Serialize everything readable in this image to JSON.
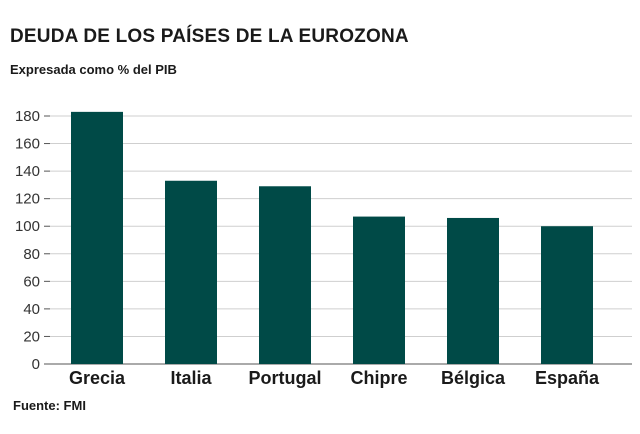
{
  "title": "DEUDA DE LOS PAÍSES DE LA EUROZONA",
  "subtitle": "Expresada como % del PIB",
  "source": "Fuente: FMI",
  "colors": {
    "bar": "#004a47",
    "grid": "#cfcfcf"
  },
  "chart_data": {
    "type": "bar",
    "title": "DEUDA DE LOS PAÍSES DE LA EUROZONA",
    "subtitle": "Expresada como % del PIB",
    "categories": [
      "Grecia",
      "Italia",
      "Portugal",
      "Chipre",
      "Bélgica",
      "España"
    ],
    "values": [
      183,
      133,
      129,
      107,
      106,
      100
    ],
    "ylim": [
      0,
      180
    ],
    "yticks": [
      0,
      20,
      40,
      60,
      80,
      100,
      120,
      140,
      160,
      180
    ],
    "grid": true,
    "xlabel": "",
    "ylabel": ""
  }
}
